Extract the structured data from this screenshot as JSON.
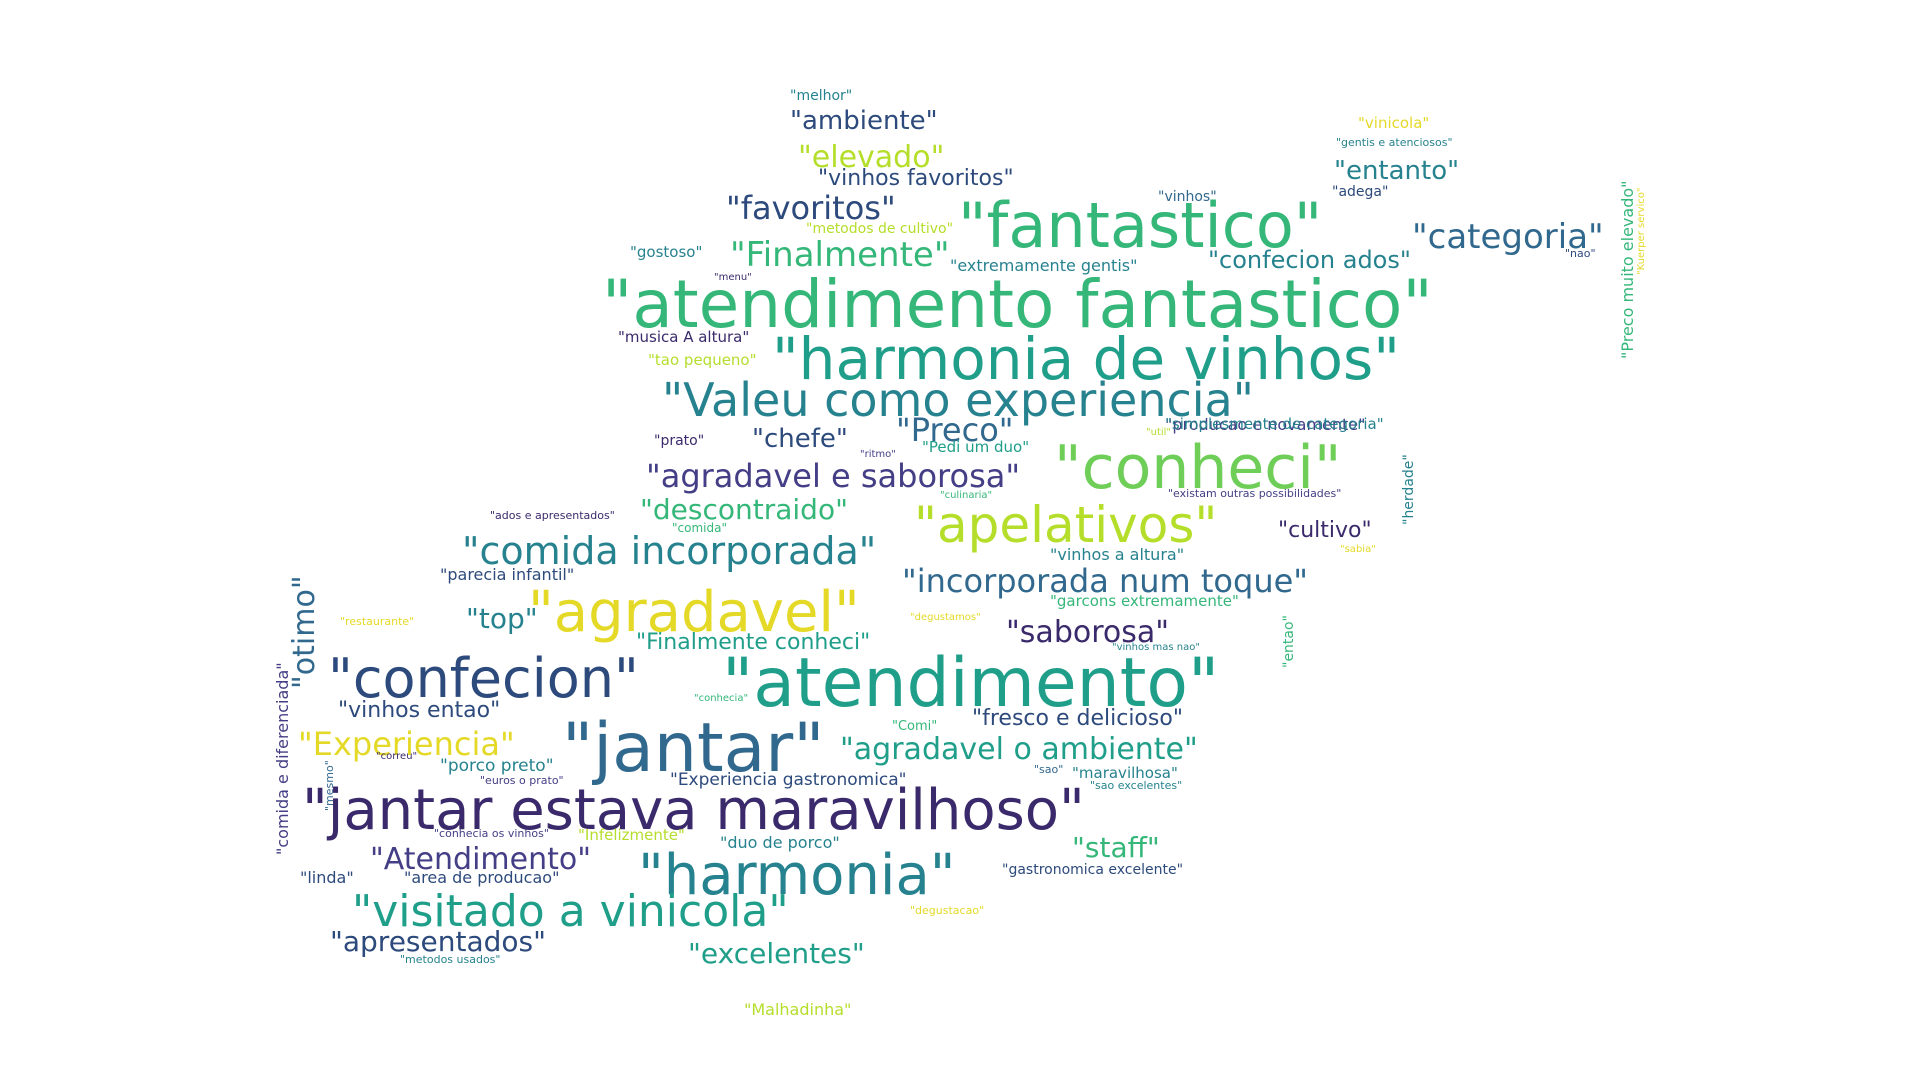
{
  "cloud": {
    "palette": {
      "purple": "#3b2a6b",
      "indigo": "#433e85",
      "navy": "#2d4a7c",
      "blue": "#31688e",
      "teal": "#26828e",
      "sea": "#1f9e89",
      "green": "#35b779",
      "lime": "#6ece58",
      "yellowgreen": "#b5de2b",
      "yellow": "#e5d928"
    },
    "words": [
      {
        "text": "\"atendimento fantastico\"",
        "color": "green"
      },
      {
        "text": "\"jantar estava maravilhoso\"",
        "color": "purple"
      },
      {
        "text": "\"atendimento\"",
        "color": "sea"
      },
      {
        "text": "\"jantar\"",
        "color": "blue"
      },
      {
        "text": "\"harmonia de vinhos\"",
        "color": "sea"
      },
      {
        "text": "\"fantastico\"",
        "color": "green"
      },
      {
        "text": "\"conheci\"",
        "color": "lime"
      },
      {
        "text": "\"confecion\"",
        "color": "navy"
      },
      {
        "text": "\"agradavel\"",
        "color": "yellow"
      },
      {
        "text": "\"harmonia\"",
        "color": "teal"
      },
      {
        "text": "\"Valeu como experiencia\"",
        "color": "teal"
      },
      {
        "text": "\"apelativos\"",
        "color": "yellowgreen"
      },
      {
        "text": "\"visitado a vinicola\"",
        "color": "sea"
      },
      {
        "text": "\"comida incorporada\"",
        "color": "teal"
      },
      {
        "text": "\"agradavel e saborosa\"",
        "color": "indigo"
      },
      {
        "text": "\"incorporada num toque\"",
        "color": "blue"
      },
      {
        "text": "\"agradavel o ambiente\"",
        "color": "sea"
      },
      {
        "text": "\"Experiencia\"",
        "color": "yellow"
      },
      {
        "text": "\"saborosa\"",
        "color": "purple"
      },
      {
        "text": "\"categoria\"",
        "color": "blue"
      },
      {
        "text": "\"favoritos\"",
        "color": "navy"
      },
      {
        "text": "\"Finalmente\"",
        "color": "green"
      },
      {
        "text": "\"Preco\"",
        "color": "blue"
      },
      {
        "text": "\"Atendimento\"",
        "color": "indigo"
      },
      {
        "text": "\"apresentados\"",
        "color": "navy"
      },
      {
        "text": "\"excelentes\"",
        "color": "sea"
      },
      {
        "text": "\"descontraido\"",
        "color": "green"
      },
      {
        "text": "\"elevado\"",
        "color": "yellowgreen"
      },
      {
        "text": "\"ambiente\"",
        "color": "navy"
      },
      {
        "text": "\"otimo\"",
        "color": "blue"
      },
      {
        "text": "\"chefe\"",
        "color": "navy"
      },
      {
        "text": "\"confecion ados\"",
        "color": "teal"
      },
      {
        "text": "\"entanto\"",
        "color": "teal"
      },
      {
        "text": "\"staff\"",
        "color": "green"
      },
      {
        "text": "\"top\"",
        "color": "teal"
      },
      {
        "text": "\"vinhos favoritos\"",
        "color": "navy"
      },
      {
        "text": "\"cultivo\"",
        "color": "purple"
      },
      {
        "text": "\"fresco e delicioso\"",
        "color": "navy"
      },
      {
        "text": "\"Finalmente conheci\"",
        "color": "sea"
      },
      {
        "text": "\"vinhos entao\"",
        "color": "navy"
      },
      {
        "text": "\"Experiencia gastronomica\"",
        "color": "navy"
      },
      {
        "text": "\"porco preto\"",
        "color": "teal"
      },
      {
        "text": "\"duo de porco\"",
        "color": "teal"
      },
      {
        "text": "\"vinhos a altura\"",
        "color": "teal"
      },
      {
        "text": "\"parecia infantil\"",
        "color": "navy"
      },
      {
        "text": "\"producao e novamente\"",
        "color": "indigo"
      },
      {
        "text": "\"simplesmente de categoria\"",
        "color": "teal"
      },
      {
        "text": "\"garcons extremamente\"",
        "color": "green"
      },
      {
        "text": "\"area de producao\"",
        "color": "navy"
      },
      {
        "text": "\"linda\"",
        "color": "navy"
      },
      {
        "text": "\"maravilhosa\"",
        "color": "teal"
      },
      {
        "text": "\"gastronomica excelente\"",
        "color": "navy"
      },
      {
        "text": "\"extremamente gentis\"",
        "color": "teal"
      },
      {
        "text": "\"musica A altura\"",
        "color": "purple"
      },
      {
        "text": "\"tao pequeno\"",
        "color": "yellowgreen"
      },
      {
        "text": "\"gostoso\"",
        "color": "teal"
      },
      {
        "text": "\"metodos de cultivo\"",
        "color": "yellowgreen"
      },
      {
        "text": "\"Infelizmente\"",
        "color": "yellowgreen"
      },
      {
        "text": "\"Pedi um duo\"",
        "color": "sea"
      },
      {
        "text": "\"prato\"",
        "color": "purple"
      },
      {
        "text": "\"vinhos\"",
        "color": "blue"
      },
      {
        "text": "\"adega\"",
        "color": "navy"
      },
      {
        "text": "\"melhor\"",
        "color": "teal"
      },
      {
        "text": "\"vinicola\"",
        "color": "yellow"
      },
      {
        "text": "\"gentis e atenciosos\"",
        "color": "teal"
      },
      {
        "text": "\"nao\"",
        "color": "navy"
      },
      {
        "text": "\"menu\"",
        "color": "purple"
      },
      {
        "text": "\"ritmo\"",
        "color": "indigo"
      },
      {
        "text": "\"util\"",
        "color": "yellowgreen"
      },
      {
        "text": "\"culinaria\"",
        "color": "green"
      },
      {
        "text": "\"existam outras possibilidades\"",
        "color": "indigo"
      },
      {
        "text": "\"ados e apresentados\"",
        "color": "purple"
      },
      {
        "text": "\"comida\"",
        "color": "green"
      },
      {
        "text": "\"sabia\"",
        "color": "yellow"
      },
      {
        "text": "\"restaurante\"",
        "color": "yellow"
      },
      {
        "text": "\"degustamos\"",
        "color": "yellow"
      },
      {
        "text": "\"vinhos mas nao\"",
        "color": "teal"
      },
      {
        "text": "\"conhecia\"",
        "color": "green"
      },
      {
        "text": "\"Comi\"",
        "color": "green"
      },
      {
        "text": "\"correu\"",
        "color": "purple"
      },
      {
        "text": "\"euros o prato\"",
        "color": "indigo"
      },
      {
        "text": "\"sao\"",
        "color": "blue"
      },
      {
        "text": "\"sao excelentes\"",
        "color": "teal"
      },
      {
        "text": "\"conhecia os vinhos\"",
        "color": "indigo"
      },
      {
        "text": "\"degustacao\"",
        "color": "yellow"
      },
      {
        "text": "\"metodos usados\"",
        "color": "teal"
      },
      {
        "text": "\"Malhadinha\"",
        "color": "yellowgreen"
      },
      {
        "text": "\"comida e diferenciada\"",
        "color": "indigo"
      },
      {
        "text": "\"mesmo\"",
        "color": "blue"
      },
      {
        "text": "\"entao\"",
        "color": "green"
      },
      {
        "text": "\"herdade\"",
        "color": "teal"
      },
      {
        "text": "\"Preco muito elevado\"",
        "color": "green"
      },
      {
        "text": "\"Kuerper servico\"",
        "color": "yellow"
      }
    ]
  }
}
